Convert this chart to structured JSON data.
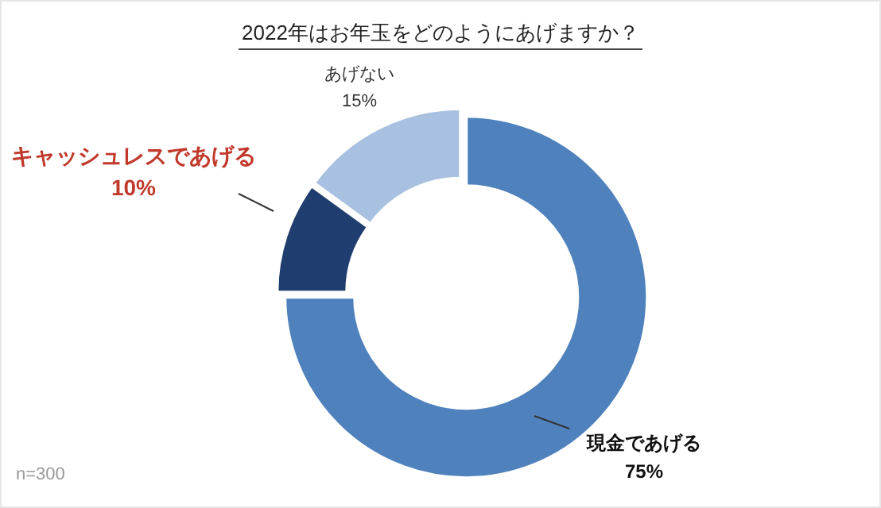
{
  "chart_data": {
    "type": "donut",
    "title": "2022年はお年玉をどのようにあげますか？",
    "categories": [
      "現金であげる",
      "キャッシュレスであげる",
      "あげない"
    ],
    "values": [
      75,
      10,
      15
    ],
    "colors": [
      "#4f81bd",
      "#1f3d6e",
      "#a9c1e0"
    ],
    "value_labels": [
      "75%",
      "10%",
      "15%"
    ],
    "annotations": [
      "n=300"
    ]
  }
}
